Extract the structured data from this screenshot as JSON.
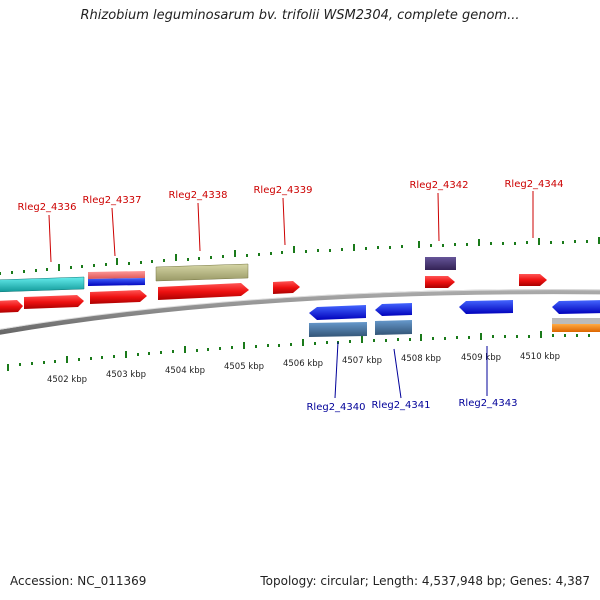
{
  "title": "Rhizobium leguminosarum bv. trifolii WSM2304, complete genom...",
  "footer": {
    "accession": "Accession: NC_011369",
    "summary": "Topology: circular; Length: 4,537,948 bp; Genes: 4,387"
  },
  "colors": {
    "forward_label": "#cc0000",
    "reverse_label": "#000099",
    "tick": "#1a7a1a",
    "backbone": "#888888"
  },
  "kbp_labels": [
    "4502 kbp",
    "4503 kbp",
    "4504 kbp",
    "4505 kbp",
    "4506 kbp",
    "4507 kbp",
    "4508 kbp",
    "4509 kbp",
    "4510 kbp"
  ],
  "gene_labels": {
    "forward": [
      "Rleg2_4336",
      "Rleg2_4337",
      "Rleg2_4338",
      "Rleg2_4339",
      "Rleg2_4342",
      "Rleg2_4344"
    ],
    "reverse": [
      "Rleg2_4340",
      "Rleg2_4341",
      "Rleg2_4343"
    ]
  },
  "features": [
    {
      "color": "#22cccc",
      "strand": "+"
    },
    {
      "color": "#ee1111",
      "strand": "+"
    },
    {
      "color": "#ee7777",
      "strand": "+"
    },
    {
      "color": "#1111dd",
      "strand": "+"
    },
    {
      "color": "#bbbb88",
      "strand": "+"
    },
    {
      "color": "#443377",
      "strand": "+"
    },
    {
      "color": "#1133ee",
      "strand": "-"
    },
    {
      "color": "#4477aa",
      "strand": "-"
    },
    {
      "color": "#ff8800",
      "strand": "-"
    },
    {
      "color": "#aaaaaa",
      "strand": "-"
    }
  ]
}
